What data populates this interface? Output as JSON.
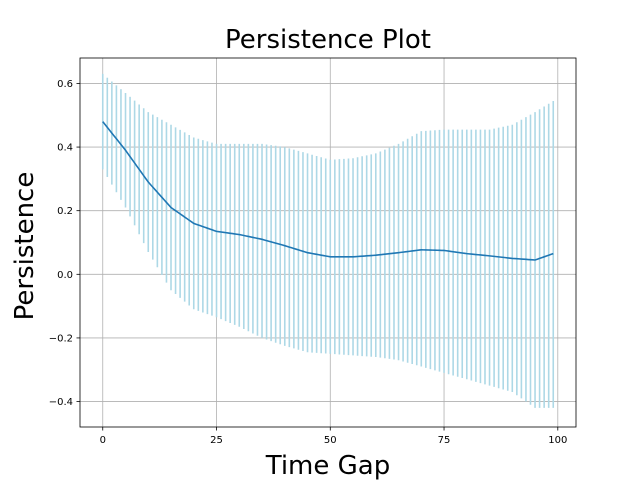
{
  "chart_data": {
    "type": "line",
    "title": "Persistence Plot",
    "xlabel": "Time Gap",
    "ylabel": "Persistence",
    "xlim": [
      -5,
      104
    ],
    "ylim": [
      -0.48,
      0.68
    ],
    "xticks": [
      0,
      25,
      50,
      75,
      100
    ],
    "yticks": [
      -0.4,
      -0.2,
      0.0,
      0.2,
      0.4,
      0.6
    ],
    "xtick_labels": [
      "0",
      "25",
      "50",
      "75",
      "100"
    ],
    "ytick_labels": [
      "−0.4",
      "−0.2",
      "0.0",
      "0.2",
      "0.4",
      "0.6"
    ],
    "grid": true,
    "line_color": "#1f77b4",
    "band_color": "#add8e6",
    "series": [
      {
        "x": [
          0,
          5,
          10,
          15,
          20,
          25,
          30,
          35,
          40,
          45,
          50,
          55,
          60,
          65,
          70,
          75,
          80,
          85,
          90,
          95,
          99
        ],
        "values": [
          0.48,
          0.39,
          0.29,
          0.21,
          0.16,
          0.135,
          0.125,
          0.11,
          0.09,
          0.068,
          0.055,
          0.055,
          0.06,
          0.068,
          0.077,
          0.075,
          0.065,
          0.058,
          0.05,
          0.045,
          0.065
        ],
        "upper": [
          0.63,
          0.57,
          0.51,
          0.47,
          0.43,
          0.41,
          0.41,
          0.41,
          0.4,
          0.38,
          0.36,
          0.365,
          0.38,
          0.41,
          0.45,
          0.455,
          0.455,
          0.455,
          0.47,
          0.51,
          0.545
        ],
        "lower": [
          0.33,
          0.21,
          0.07,
          -0.05,
          -0.11,
          -0.135,
          -0.165,
          -0.2,
          -0.225,
          -0.245,
          -0.25,
          -0.255,
          -0.26,
          -0.27,
          -0.29,
          -0.31,
          -0.33,
          -0.35,
          -0.37,
          -0.42,
          -0.42
        ]
      }
    ]
  }
}
